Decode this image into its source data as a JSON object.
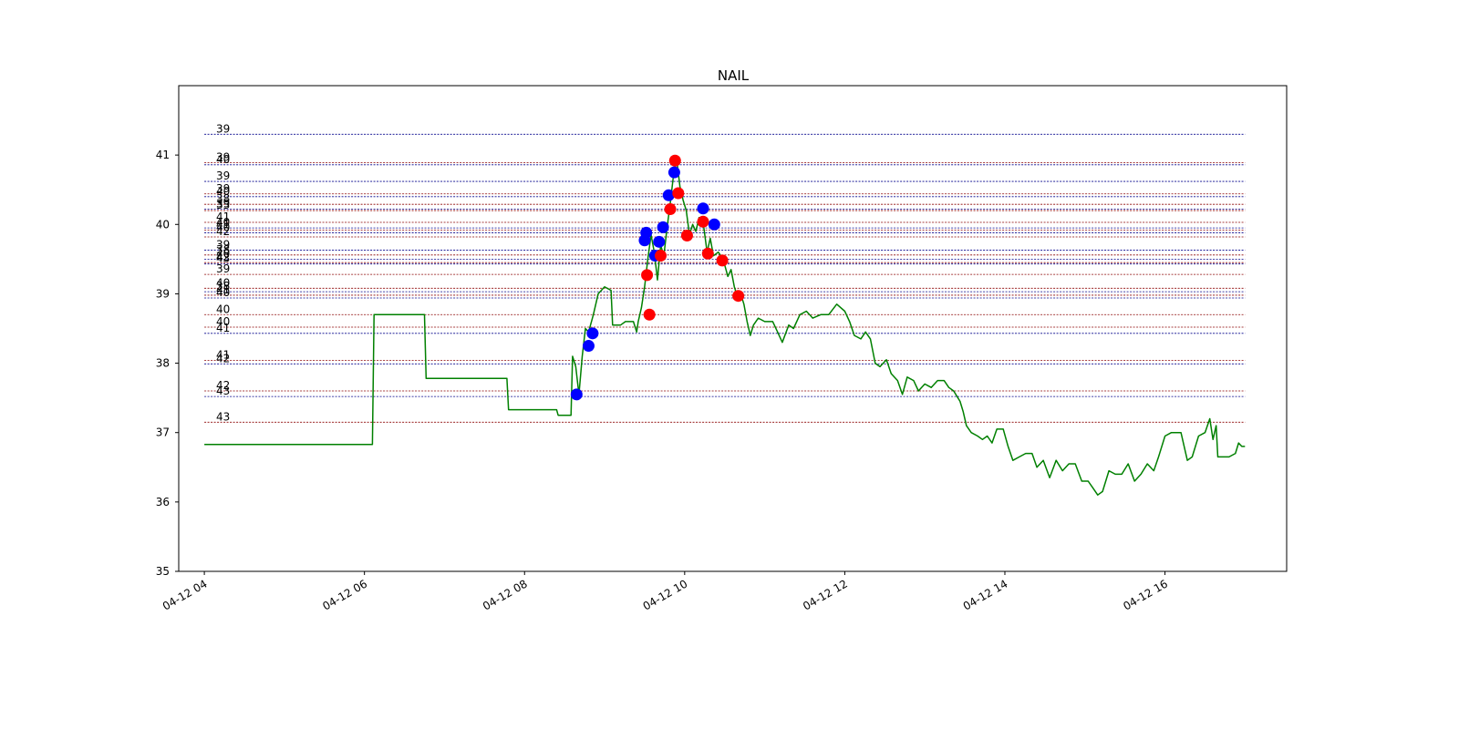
{
  "chart_data": {
    "type": "line",
    "title": "NAIL",
    "xlabel": "",
    "ylabel": "",
    "ylim": [
      35,
      42
    ],
    "xlim_hours": [
      3.68,
      17.52
    ],
    "yticks": [
      35,
      36,
      37,
      38,
      39,
      40,
      41
    ],
    "xticks": [
      {
        "hour": 4,
        "label": "04-12 04"
      },
      {
        "hour": 6,
        "label": "04-12 06"
      },
      {
        "hour": 8,
        "label": "04-12 08"
      },
      {
        "hour": 10,
        "label": "04-12 10"
      },
      {
        "hour": 12,
        "label": "04-12 12"
      },
      {
        "hour": 14,
        "label": "04-12 14"
      },
      {
        "hour": 16,
        "label": "04-12 16"
      }
    ],
    "series": [
      {
        "name": "price",
        "color": "#008000",
        "points": [
          [
            4.0,
            36.83
          ],
          [
            6.1,
            36.83
          ],
          [
            6.12,
            38.7
          ],
          [
            6.75,
            38.7
          ],
          [
            6.77,
            37.78
          ],
          [
            7.78,
            37.78
          ],
          [
            7.8,
            37.33
          ],
          [
            8.4,
            37.33
          ],
          [
            8.42,
            37.25
          ],
          [
            8.58,
            37.25
          ],
          [
            8.6,
            38.1
          ],
          [
            8.64,
            37.95
          ],
          [
            8.68,
            37.55
          ],
          [
            8.72,
            38.1
          ],
          [
            8.76,
            38.5
          ],
          [
            8.8,
            38.45
          ],
          [
            8.86,
            38.7
          ],
          [
            8.92,
            39.0
          ],
          [
            9.0,
            39.1
          ],
          [
            9.08,
            39.05
          ],
          [
            9.1,
            38.55
          ],
          [
            9.2,
            38.55
          ],
          [
            9.26,
            38.6
          ],
          [
            9.36,
            38.6
          ],
          [
            9.4,
            38.45
          ],
          [
            9.42,
            38.6
          ],
          [
            9.46,
            38.8
          ],
          [
            9.5,
            39.1
          ],
          [
            9.54,
            39.5
          ],
          [
            9.58,
            39.85
          ],
          [
            9.62,
            39.6
          ],
          [
            9.66,
            39.2
          ],
          [
            9.7,
            39.7
          ],
          [
            9.74,
            39.55
          ],
          [
            9.78,
            39.95
          ],
          [
            9.82,
            40.3
          ],
          [
            9.86,
            40.7
          ],
          [
            9.9,
            40.95
          ],
          [
            9.94,
            40.55
          ],
          [
            9.98,
            40.35
          ],
          [
            10.02,
            40.2
          ],
          [
            10.06,
            39.85
          ],
          [
            10.1,
            40.0
          ],
          [
            10.14,
            39.9
          ],
          [
            10.18,
            40.1
          ],
          [
            10.24,
            39.95
          ],
          [
            10.28,
            39.6
          ],
          [
            10.32,
            39.8
          ],
          [
            10.36,
            39.55
          ],
          [
            10.42,
            39.6
          ],
          [
            10.48,
            39.5
          ],
          [
            10.54,
            39.25
          ],
          [
            10.58,
            39.35
          ],
          [
            10.62,
            39.1
          ],
          [
            10.66,
            38.95
          ],
          [
            10.7,
            39.0
          ],
          [
            10.74,
            38.85
          ],
          [
            10.78,
            38.6
          ],
          [
            10.82,
            38.4
          ],
          [
            10.86,
            38.55
          ],
          [
            10.92,
            38.65
          ],
          [
            11.0,
            38.6
          ],
          [
            11.1,
            38.6
          ],
          [
            11.16,
            38.45
          ],
          [
            11.22,
            38.3
          ],
          [
            11.3,
            38.55
          ],
          [
            11.36,
            38.5
          ],
          [
            11.44,
            38.7
          ],
          [
            11.52,
            38.75
          ],
          [
            11.6,
            38.65
          ],
          [
            11.7,
            38.7
          ],
          [
            11.8,
            38.7
          ],
          [
            11.9,
            38.85
          ],
          [
            12.0,
            38.75
          ],
          [
            12.06,
            38.6
          ],
          [
            12.12,
            38.4
          ],
          [
            12.2,
            38.35
          ],
          [
            12.26,
            38.45
          ],
          [
            12.32,
            38.35
          ],
          [
            12.38,
            38.0
          ],
          [
            12.44,
            37.95
          ],
          [
            12.52,
            38.05
          ],
          [
            12.58,
            37.85
          ],
          [
            12.66,
            37.75
          ],
          [
            12.72,
            37.55
          ],
          [
            12.78,
            37.8
          ],
          [
            12.86,
            37.75
          ],
          [
            12.92,
            37.6
          ],
          [
            13.0,
            37.7
          ],
          [
            13.08,
            37.65
          ],
          [
            13.16,
            37.75
          ],
          [
            13.24,
            37.75
          ],
          [
            13.3,
            37.65
          ],
          [
            13.36,
            37.6
          ],
          [
            13.44,
            37.45
          ],
          [
            13.48,
            37.3
          ],
          [
            13.52,
            37.1
          ],
          [
            13.58,
            37.0
          ],
          [
            13.66,
            36.95
          ],
          [
            13.72,
            36.9
          ],
          [
            13.78,
            36.95
          ],
          [
            13.84,
            36.85
          ],
          [
            13.9,
            37.05
          ],
          [
            13.98,
            37.05
          ],
          [
            14.04,
            36.8
          ],
          [
            14.1,
            36.6
          ],
          [
            14.18,
            36.65
          ],
          [
            14.26,
            36.7
          ],
          [
            14.34,
            36.7
          ],
          [
            14.4,
            36.5
          ],
          [
            14.48,
            36.6
          ],
          [
            14.56,
            36.35
          ],
          [
            14.64,
            36.6
          ],
          [
            14.72,
            36.45
          ],
          [
            14.8,
            36.55
          ],
          [
            14.88,
            36.55
          ],
          [
            14.96,
            36.3
          ],
          [
            15.04,
            36.3
          ],
          [
            15.1,
            36.2
          ],
          [
            15.16,
            36.1
          ],
          [
            15.22,
            36.15
          ],
          [
            15.3,
            36.45
          ],
          [
            15.38,
            36.4
          ],
          [
            15.46,
            36.4
          ],
          [
            15.54,
            36.55
          ],
          [
            15.62,
            36.3
          ],
          [
            15.7,
            36.4
          ],
          [
            15.78,
            36.55
          ],
          [
            15.86,
            36.45
          ],
          [
            15.92,
            36.65
          ],
          [
            16.0,
            36.95
          ],
          [
            16.08,
            37.0
          ],
          [
            16.2,
            37.0
          ],
          [
            16.28,
            36.6
          ],
          [
            16.34,
            36.65
          ],
          [
            16.42,
            36.95
          ],
          [
            16.5,
            37.0
          ],
          [
            16.56,
            37.2
          ],
          [
            16.6,
            36.9
          ],
          [
            16.64,
            37.1
          ],
          [
            16.66,
            36.65
          ],
          [
            16.8,
            36.65
          ],
          [
            16.88,
            36.7
          ],
          [
            16.92,
            36.85
          ],
          [
            16.96,
            36.8
          ],
          [
            17.0,
            36.8
          ]
        ]
      }
    ],
    "markers": [
      {
        "color": "#0000ff",
        "points": [
          [
            8.65,
            37.55
          ],
          [
            8.8,
            38.25
          ],
          [
            8.85,
            38.43
          ],
          [
            9.5,
            39.77
          ],
          [
            9.52,
            39.88
          ],
          [
            9.63,
            39.55
          ],
          [
            9.68,
            39.75
          ],
          [
            9.73,
            39.96
          ],
          [
            9.8,
            40.42
          ],
          [
            9.87,
            40.75
          ],
          [
            10.23,
            40.23
          ],
          [
            10.37,
            40.0
          ]
        ]
      },
      {
        "color": "#ff0000",
        "points": [
          [
            9.53,
            39.27
          ],
          [
            9.56,
            38.7
          ],
          [
            9.7,
            39.55
          ],
          [
            9.82,
            40.22
          ],
          [
            9.88,
            40.92
          ],
          [
            9.92,
            40.45
          ],
          [
            10.03,
            39.84
          ],
          [
            10.23,
            40.04
          ],
          [
            10.29,
            39.58
          ],
          [
            10.47,
            39.48
          ],
          [
            10.67,
            38.97
          ]
        ]
      }
    ],
    "levels": [
      {
        "y": 41.3,
        "label": "39",
        "color": "#00008b"
      },
      {
        "y": 40.89,
        "label": "39",
        "color": "#8b0000"
      },
      {
        "y": 40.86,
        "label": "40",
        "color": "#00008b"
      },
      {
        "y": 40.62,
        "label": "39",
        "color": "#00008b"
      },
      {
        "y": 40.44,
        "label": "39",
        "color": "#8b0000"
      },
      {
        "y": 40.4,
        "label": "40",
        "color": "#00008b"
      },
      {
        "y": 40.29,
        "label": "38",
        "color": "#8b0000"
      },
      {
        "y": 40.22,
        "label": "39",
        "color": "#00008b"
      },
      {
        "y": 40.2,
        "label": "33",
        "color": "#8b0000"
      },
      {
        "y": 40.03,
        "label": "41",
        "color": "#8b0000"
      },
      {
        "y": 39.95,
        "label": "40",
        "color": "#00008b"
      },
      {
        "y": 39.92,
        "label": "41",
        "color": "#8b0000"
      },
      {
        "y": 39.88,
        "label": "40",
        "color": "#00008b"
      },
      {
        "y": 39.82,
        "label": "42",
        "color": "#8b0000"
      },
      {
        "y": 39.63,
        "label": "39",
        "color": "#00008b"
      },
      {
        "y": 39.56,
        "label": "38",
        "color": "#8b0000"
      },
      {
        "y": 39.5,
        "label": "40",
        "color": "#00008b"
      },
      {
        "y": 39.45,
        "label": "42",
        "color": "#8b0000"
      },
      {
        "y": 39.43,
        "label": "43",
        "color": "#00008b"
      },
      {
        "y": 39.28,
        "label": "39",
        "color": "#8b0000"
      },
      {
        "y": 39.08,
        "label": "40",
        "color": "#8b0000"
      },
      {
        "y": 39.03,
        "label": "38",
        "color": "#00008b"
      },
      {
        "y": 38.98,
        "label": "41",
        "color": "#8b0000"
      },
      {
        "y": 38.94,
        "label": "40",
        "color": "#00008b"
      },
      {
        "y": 38.7,
        "label": "40",
        "color": "#8b0000"
      },
      {
        "y": 38.52,
        "label": "40",
        "color": "#8b0000"
      },
      {
        "y": 38.43,
        "label": "41",
        "color": "#00008b"
      },
      {
        "y": 38.04,
        "label": "41",
        "color": "#8b0000"
      },
      {
        "y": 37.99,
        "label": "42",
        "color": "#00008b"
      },
      {
        "y": 37.6,
        "label": "42",
        "color": "#8b0000"
      },
      {
        "y": 37.52,
        "label": "43",
        "color": "#00008b"
      },
      {
        "y": 37.15,
        "label": "43",
        "color": "#8b0000"
      }
    ]
  }
}
